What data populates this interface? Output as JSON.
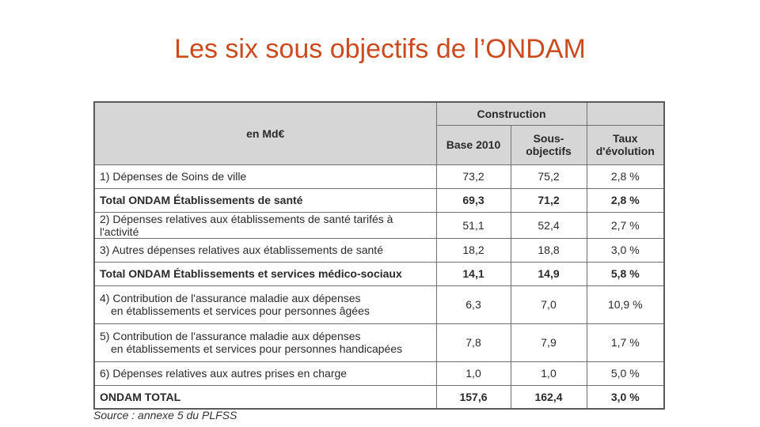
{
  "slide": {
    "title": "Les six sous objectifs de l’ONDAM",
    "source": "Source : annexe 5 du PLFSS"
  },
  "table": {
    "header": {
      "unit_label": "en Md€",
      "group_label": "Construction",
      "col_base": "Base 2010",
      "col_sous_objectifs": "Sous-objectifs",
      "col_taux": "Taux d'évolution"
    },
    "rows": [
      {
        "label": "1) Dépenses de Soins de ville",
        "base": "73,2",
        "sous": "75,2",
        "taux": "2,8 %",
        "bold": false
      },
      {
        "label": "Total ONDAM Établissements de santé",
        "base": "69,3",
        "sous": "71,2",
        "taux": "2,8 %",
        "bold": true
      },
      {
        "label": "2) Dépenses relatives aux établissements de santé tarifés à l'activité",
        "base": "51,1",
        "sous": "52,4",
        "taux": "2,7 %",
        "bold": false
      },
      {
        "label": "3) Autres dépenses relatives aux établissements de santé",
        "base": "18,2",
        "sous": "18,8",
        "taux": "3,0 %",
        "bold": false
      },
      {
        "label": "Total ONDAM Établissements et services médico-sociaux",
        "base": "14,1",
        "sous": "14,9",
        "taux": "5,8 %",
        "bold": true
      },
      {
        "label_line1": "4) Contribution de l'assurance maladie aux dépenses",
        "label_line2": "en établissements et services pour personnes âgées",
        "base": "6,3",
        "sous": "7,0",
        "taux": "10,9 %",
        "bold": false
      },
      {
        "label_line1": "5) Contribution de l'assurance maladie aux dépenses",
        "label_line2": "en établissements et services pour personnes handicapées",
        "base": "7,8",
        "sous": "7,9",
        "taux": "1,7 %",
        "bold": false
      },
      {
        "label": "6) Dépenses relatives aux autres prises en charge",
        "base": "1,0",
        "sous": "1,0",
        "taux": "5,0 %",
        "bold": false
      },
      {
        "label": "ONDAM TOTAL",
        "base": "157,6",
        "sous": "162,4",
        "taux": "3,0 %",
        "bold": true
      }
    ]
  },
  "colors": {
    "title": "#cc4a1e",
    "header_bg": "#d6d6d6",
    "border": "#6f6f6f"
  }
}
